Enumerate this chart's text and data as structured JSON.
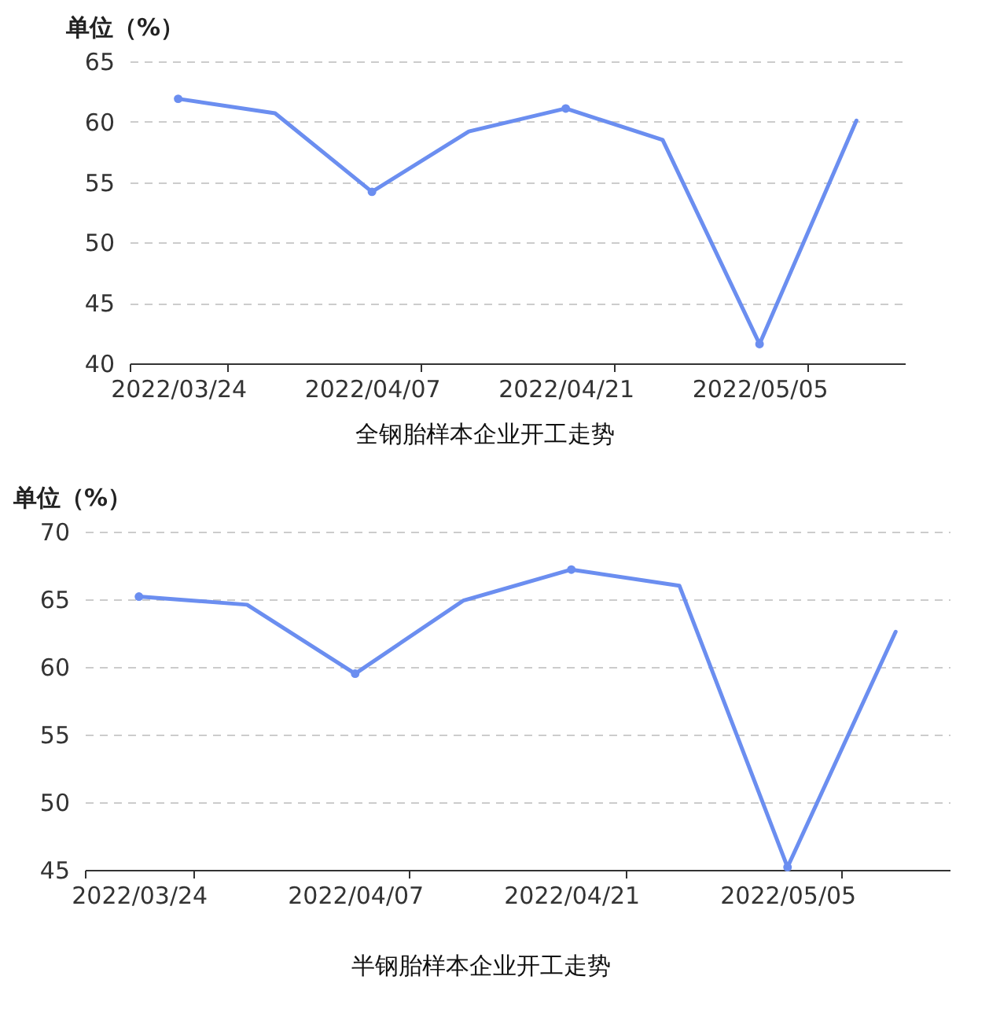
{
  "chart_data": [
    {
      "type": "line",
      "title": "全钢胎样本企业开工走势",
      "ylabel": "单位（%）",
      "categories": [
        "2022/03/24",
        null,
        "2022/04/07",
        null,
        "2022/04/21",
        null,
        "2022/05/05",
        null
      ],
      "series": [
        {
          "color": "#6b8ef0",
          "values": [
            61.9,
            60.7,
            54.2,
            59.2,
            61.1,
            58.5,
            41.6,
            60.1
          ]
        }
      ],
      "ylim": [
        40,
        65
      ],
      "yticks": [
        40,
        45,
        50,
        55,
        60,
        65
      ],
      "grid": "y",
      "marker": "circle",
      "line_style": "solid"
    },
    {
      "type": "line",
      "title": "半钢胎样本企业开工走势",
      "ylabel": "单位（%）",
      "categories": [
        "2022/03/24",
        null,
        "2022/04/07",
        null,
        "2022/04/21",
        null,
        "2022/05/05",
        null
      ],
      "series": [
        {
          "color": "#6b8ef0",
          "values": [
            65.2,
            64.6,
            59.5,
            64.9,
            67.2,
            66.0,
            45.2,
            62.6
          ]
        }
      ],
      "ylim": [
        45,
        70
      ],
      "yticks": [
        45,
        50,
        55,
        60,
        65,
        70
      ],
      "grid": "y",
      "marker": "circle",
      "line_style": "solid"
    }
  ]
}
